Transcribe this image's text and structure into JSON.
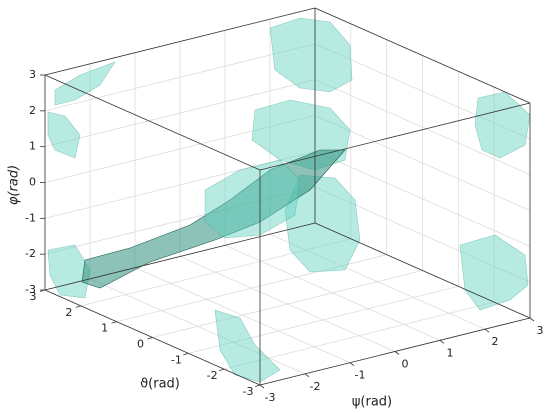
{
  "chart_data": {
    "type": "isosurface3d",
    "xlabel": "ϑ(rad)",
    "ylabel": "ψ(rad)",
    "zlabel": "φ(rad)",
    "xlim": [
      -3,
      3
    ],
    "xticks": [
      -3,
      -2,
      -1,
      0,
      1,
      2,
      3
    ],
    "ylim": [
      -3,
      3
    ],
    "yticks": [
      -3,
      -2,
      -1,
      0,
      1,
      2,
      3
    ],
    "zlim": [
      -3,
      3
    ],
    "zticks": [
      -3,
      -2,
      -1,
      0,
      1,
      2,
      3
    ],
    "grid": true,
    "color": "#5fd3bf"
  }
}
